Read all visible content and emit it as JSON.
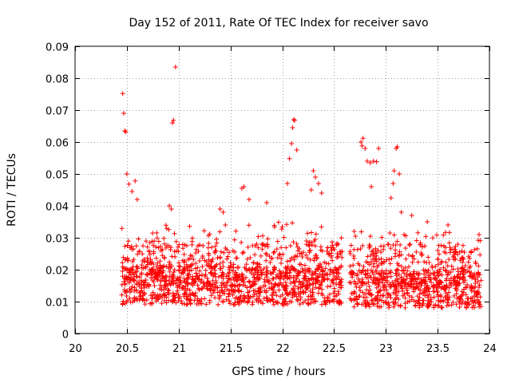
{
  "chart_data": {
    "type": "scatter",
    "title": "Day 152 of 2011, Rate Of TEC Index for receiver savo",
    "xlabel": "GPS time / hours",
    "ylabel": "ROTI / TECUs",
    "xlim": [
      20,
      24
    ],
    "ylim": [
      0,
      0.09
    ],
    "xticks": [
      "20",
      "20.5",
      "21",
      "21.5",
      "22",
      "22.5",
      "23",
      "23.5",
      "24"
    ],
    "xtick_values": [
      20,
      20.5,
      21,
      21.5,
      22,
      22.5,
      23,
      23.5,
      24
    ],
    "yticks": [
      "0",
      "0.01",
      "0.02",
      "0.03",
      "0.04",
      "0.05",
      "0.06",
      "0.07",
      "0.08",
      "0.09"
    ],
    "ytick_values": [
      0,
      0.01,
      0.02,
      0.03,
      0.04,
      0.05,
      0.06,
      0.07,
      0.08,
      0.09
    ],
    "grid": true,
    "marker": "+",
    "color": "#ff0000",
    "segments": [
      {
        "x_start": 20.45,
        "x_end": 22.58,
        "y_min": 0.005,
        "y_max": 0.035
      },
      {
        "x_start": 22.65,
        "x_end": 23.92,
        "y_min": 0.004,
        "y_max": 0.032
      }
    ],
    "highlights": [
      [
        20.46,
        0.0752
      ],
      [
        20.47,
        0.069
      ],
      [
        20.48,
        0.0635
      ],
      [
        20.49,
        0.0632
      ],
      [
        20.5,
        0.05
      ],
      [
        20.52,
        0.0468
      ],
      [
        20.55,
        0.0445
      ],
      [
        20.58,
        0.0478
      ],
      [
        20.6,
        0.042
      ],
      [
        20.97,
        0.0835
      ],
      [
        20.94,
        0.066
      ],
      [
        20.95,
        0.0668
      ],
      [
        20.93,
        0.039
      ],
      [
        20.91,
        0.04
      ],
      [
        21.4,
        0.039
      ],
      [
        21.43,
        0.038
      ],
      [
        21.61,
        0.0455
      ],
      [
        21.63,
        0.046
      ],
      [
        21.68,
        0.042
      ],
      [
        21.85,
        0.041
      ],
      [
        22.05,
        0.047
      ],
      [
        22.07,
        0.0548
      ],
      [
        22.09,
        0.0595
      ],
      [
        22.1,
        0.0645
      ],
      [
        22.11,
        0.067
      ],
      [
        22.12,
        0.0668
      ],
      [
        22.14,
        0.0575
      ],
      [
        22.3,
        0.051
      ],
      [
        22.32,
        0.049
      ],
      [
        22.35,
        0.047
      ],
      [
        22.38,
        0.044
      ],
      [
        22.28,
        0.045
      ],
      [
        22.76,
        0.06
      ],
      [
        22.77,
        0.0588
      ],
      [
        22.78,
        0.0612
      ],
      [
        22.8,
        0.058
      ],
      [
        22.82,
        0.054
      ],
      [
        22.85,
        0.0535
      ],
      [
        22.88,
        0.054
      ],
      [
        22.91,
        0.0538
      ],
      [
        22.93,
        0.058
      ],
      [
        22.86,
        0.046
      ],
      [
        23.05,
        0.0425
      ],
      [
        23.07,
        0.047
      ],
      [
        23.08,
        0.051
      ],
      [
        23.1,
        0.058
      ],
      [
        23.11,
        0.0585
      ],
      [
        23.13,
        0.05
      ],
      [
        23.15,
        0.038
      ],
      [
        23.25,
        0.037
      ],
      [
        23.4,
        0.035
      ],
      [
        23.6,
        0.034
      ],
      [
        23.9,
        0.031
      ]
    ]
  }
}
